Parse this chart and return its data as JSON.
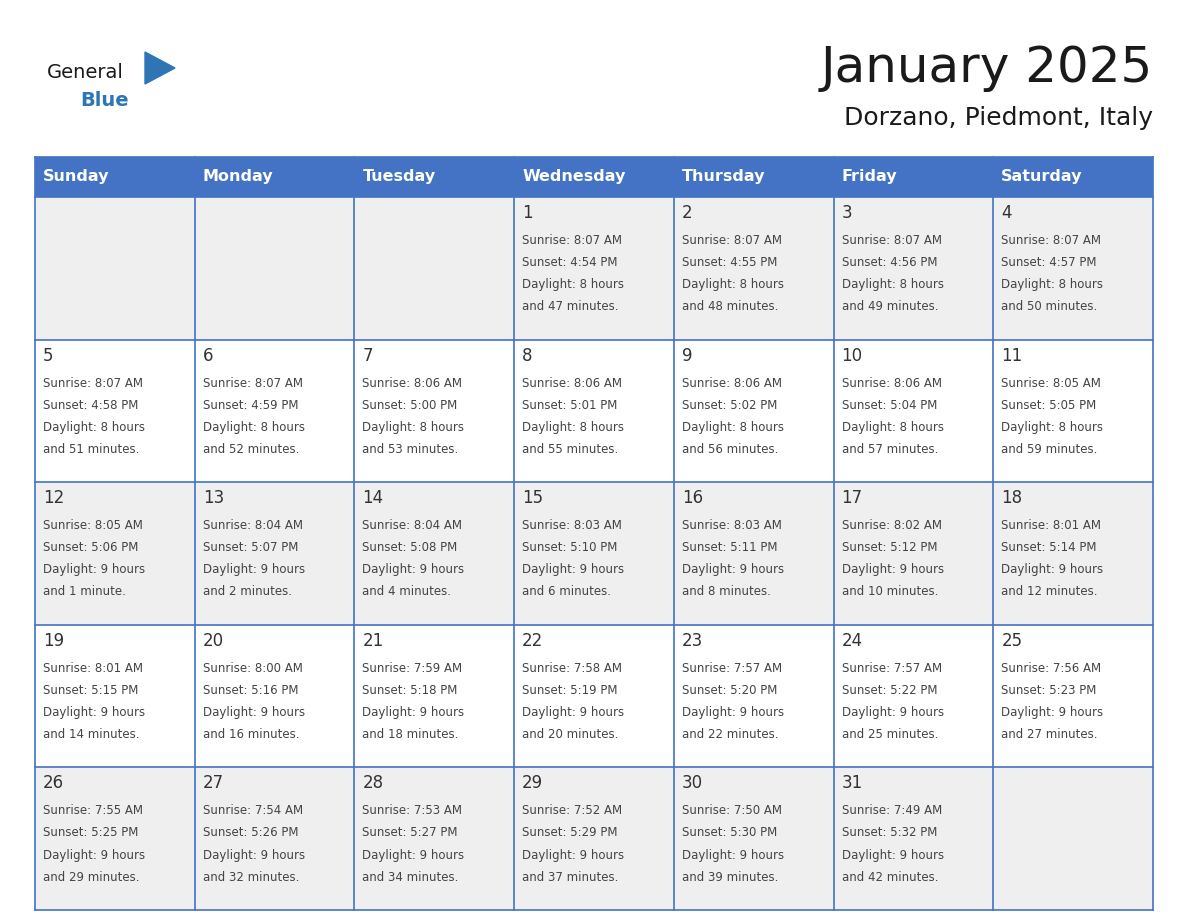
{
  "title": "January 2025",
  "subtitle": "Dorzano, Piedmont, Italy",
  "days_of_week": [
    "Sunday",
    "Monday",
    "Tuesday",
    "Wednesday",
    "Thursday",
    "Friday",
    "Saturday"
  ],
  "header_bg": "#4472C4",
  "header_text": "#FFFFFF",
  "cell_bg_row0": "#EFEFEF",
  "cell_bg_row1": "#FFFFFF",
  "cell_bg_row2": "#EFEFEF",
  "cell_bg_row3": "#FFFFFF",
  "cell_bg_row4": "#EFEFEF",
  "cell_border": "#4472C4",
  "day_number_color": "#333333",
  "text_color": "#444444",
  "title_color": "#1a1a1a",
  "subtitle_color": "#1a1a1a",
  "logo_general_color": "#1a1a1a",
  "logo_blue_color": "#2E75B6",
  "calendar_data": [
    {
      "day": 1,
      "col": 3,
      "row": 0,
      "sunrise": "8:07 AM",
      "sunset": "4:54 PM",
      "daylight_a": "Daylight: 8 hours",
      "daylight_b": "and 47 minutes."
    },
    {
      "day": 2,
      "col": 4,
      "row": 0,
      "sunrise": "8:07 AM",
      "sunset": "4:55 PM",
      "daylight_a": "Daylight: 8 hours",
      "daylight_b": "and 48 minutes."
    },
    {
      "day": 3,
      "col": 5,
      "row": 0,
      "sunrise": "8:07 AM",
      "sunset": "4:56 PM",
      "daylight_a": "Daylight: 8 hours",
      "daylight_b": "and 49 minutes."
    },
    {
      "day": 4,
      "col": 6,
      "row": 0,
      "sunrise": "8:07 AM",
      "sunset": "4:57 PM",
      "daylight_a": "Daylight: 8 hours",
      "daylight_b": "and 50 minutes."
    },
    {
      "day": 5,
      "col": 0,
      "row": 1,
      "sunrise": "8:07 AM",
      "sunset": "4:58 PM",
      "daylight_a": "Daylight: 8 hours",
      "daylight_b": "and 51 minutes."
    },
    {
      "day": 6,
      "col": 1,
      "row": 1,
      "sunrise": "8:07 AM",
      "sunset": "4:59 PM",
      "daylight_a": "Daylight: 8 hours",
      "daylight_b": "and 52 minutes."
    },
    {
      "day": 7,
      "col": 2,
      "row": 1,
      "sunrise": "8:06 AM",
      "sunset": "5:00 PM",
      "daylight_a": "Daylight: 8 hours",
      "daylight_b": "and 53 minutes."
    },
    {
      "day": 8,
      "col": 3,
      "row": 1,
      "sunrise": "8:06 AM",
      "sunset": "5:01 PM",
      "daylight_a": "Daylight: 8 hours",
      "daylight_b": "and 55 minutes."
    },
    {
      "day": 9,
      "col": 4,
      "row": 1,
      "sunrise": "8:06 AM",
      "sunset": "5:02 PM",
      "daylight_a": "Daylight: 8 hours",
      "daylight_b": "and 56 minutes."
    },
    {
      "day": 10,
      "col": 5,
      "row": 1,
      "sunrise": "8:06 AM",
      "sunset": "5:04 PM",
      "daylight_a": "Daylight: 8 hours",
      "daylight_b": "and 57 minutes."
    },
    {
      "day": 11,
      "col": 6,
      "row": 1,
      "sunrise": "8:05 AM",
      "sunset": "5:05 PM",
      "daylight_a": "Daylight: 8 hours",
      "daylight_b": "and 59 minutes."
    },
    {
      "day": 12,
      "col": 0,
      "row": 2,
      "sunrise": "8:05 AM",
      "sunset": "5:06 PM",
      "daylight_a": "Daylight: 9 hours",
      "daylight_b": "and 1 minute."
    },
    {
      "day": 13,
      "col": 1,
      "row": 2,
      "sunrise": "8:04 AM",
      "sunset": "5:07 PM",
      "daylight_a": "Daylight: 9 hours",
      "daylight_b": "and 2 minutes."
    },
    {
      "day": 14,
      "col": 2,
      "row": 2,
      "sunrise": "8:04 AM",
      "sunset": "5:08 PM",
      "daylight_a": "Daylight: 9 hours",
      "daylight_b": "and 4 minutes."
    },
    {
      "day": 15,
      "col": 3,
      "row": 2,
      "sunrise": "8:03 AM",
      "sunset": "5:10 PM",
      "daylight_a": "Daylight: 9 hours",
      "daylight_b": "and 6 minutes."
    },
    {
      "day": 16,
      "col": 4,
      "row": 2,
      "sunrise": "8:03 AM",
      "sunset": "5:11 PM",
      "daylight_a": "Daylight: 9 hours",
      "daylight_b": "and 8 minutes."
    },
    {
      "day": 17,
      "col": 5,
      "row": 2,
      "sunrise": "8:02 AM",
      "sunset": "5:12 PM",
      "daylight_a": "Daylight: 9 hours",
      "daylight_b": "and 10 minutes."
    },
    {
      "day": 18,
      "col": 6,
      "row": 2,
      "sunrise": "8:01 AM",
      "sunset": "5:14 PM",
      "daylight_a": "Daylight: 9 hours",
      "daylight_b": "and 12 minutes."
    },
    {
      "day": 19,
      "col": 0,
      "row": 3,
      "sunrise": "8:01 AM",
      "sunset": "5:15 PM",
      "daylight_a": "Daylight: 9 hours",
      "daylight_b": "and 14 minutes."
    },
    {
      "day": 20,
      "col": 1,
      "row": 3,
      "sunrise": "8:00 AM",
      "sunset": "5:16 PM",
      "daylight_a": "Daylight: 9 hours",
      "daylight_b": "and 16 minutes."
    },
    {
      "day": 21,
      "col": 2,
      "row": 3,
      "sunrise": "7:59 AM",
      "sunset": "5:18 PM",
      "daylight_a": "Daylight: 9 hours",
      "daylight_b": "and 18 minutes."
    },
    {
      "day": 22,
      "col": 3,
      "row": 3,
      "sunrise": "7:58 AM",
      "sunset": "5:19 PM",
      "daylight_a": "Daylight: 9 hours",
      "daylight_b": "and 20 minutes."
    },
    {
      "day": 23,
      "col": 4,
      "row": 3,
      "sunrise": "7:57 AM",
      "sunset": "5:20 PM",
      "daylight_a": "Daylight: 9 hours",
      "daylight_b": "and 22 minutes."
    },
    {
      "day": 24,
      "col": 5,
      "row": 3,
      "sunrise": "7:57 AM",
      "sunset": "5:22 PM",
      "daylight_a": "Daylight: 9 hours",
      "daylight_b": "and 25 minutes."
    },
    {
      "day": 25,
      "col": 6,
      "row": 3,
      "sunrise": "7:56 AM",
      "sunset": "5:23 PM",
      "daylight_a": "Daylight: 9 hours",
      "daylight_b": "and 27 minutes."
    },
    {
      "day": 26,
      "col": 0,
      "row": 4,
      "sunrise": "7:55 AM",
      "sunset": "5:25 PM",
      "daylight_a": "Daylight: 9 hours",
      "daylight_b": "and 29 minutes."
    },
    {
      "day": 27,
      "col": 1,
      "row": 4,
      "sunrise": "7:54 AM",
      "sunset": "5:26 PM",
      "daylight_a": "Daylight: 9 hours",
      "daylight_b": "and 32 minutes."
    },
    {
      "day": 28,
      "col": 2,
      "row": 4,
      "sunrise": "7:53 AM",
      "sunset": "5:27 PM",
      "daylight_a": "Daylight: 9 hours",
      "daylight_b": "and 34 minutes."
    },
    {
      "day": 29,
      "col": 3,
      "row": 4,
      "sunrise": "7:52 AM",
      "sunset": "5:29 PM",
      "daylight_a": "Daylight: 9 hours",
      "daylight_b": "and 37 minutes."
    },
    {
      "day": 30,
      "col": 4,
      "row": 4,
      "sunrise": "7:50 AM",
      "sunset": "5:30 PM",
      "daylight_a": "Daylight: 9 hours",
      "daylight_b": "and 39 minutes."
    },
    {
      "day": 31,
      "col": 5,
      "row": 4,
      "sunrise": "7:49 AM",
      "sunset": "5:32 PM",
      "daylight_a": "Daylight: 9 hours",
      "daylight_b": "and 42 minutes."
    }
  ]
}
